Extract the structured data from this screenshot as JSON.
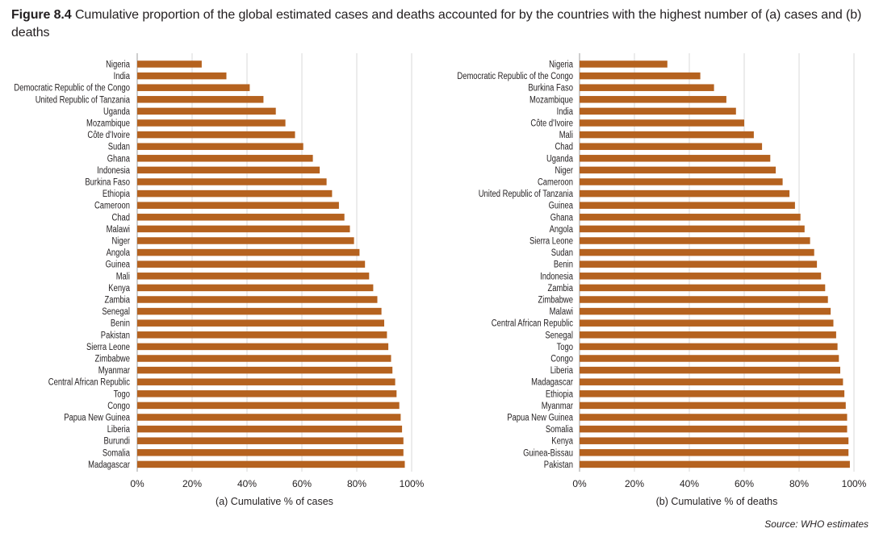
{
  "figure": {
    "label": "Figure 8.4",
    "title": "Cumulative proportion of the global estimated cases and deaths accounted for by the countries with the highest number of (a) cases and (b) deaths",
    "source_label": "Source:",
    "source_text": "WHO estimates"
  },
  "colors": {
    "bar": "#b5621f",
    "grid": "#d9d9d9",
    "axis": "#9d9d9d",
    "text": "#231f20"
  },
  "chart_data": [
    {
      "type": "bar",
      "orientation": "horizontal",
      "xlabel": "(a) Cumulative % of cases",
      "xlim": [
        0,
        100
      ],
      "xticks": [
        "0%",
        "20%",
        "40%",
        "60%",
        "80%",
        "100%"
      ],
      "grid": true,
      "categories": [
        "Nigeria",
        "India",
        "Democratic Republic of the Congo",
        "United Republic of Tanzania",
        "Uganda",
        "Mozambique",
        "Côte d'Ivoire",
        "Sudan",
        "Ghana",
        "Indonesia",
        "Burkina Faso",
        "Ethiopia",
        "Cameroon",
        "Chad",
        "Malawi",
        "Niger",
        "Angola",
        "Guinea",
        "Mali",
        "Kenya",
        "Zambia",
        "Senegal",
        "Benin",
        "Pakistan",
        "Sierra Leone",
        "Zimbabwe",
        "Myanmar",
        "Central African Republic",
        "Togo",
        "Congo",
        "Papua New Guinea",
        "Liberia",
        "Burundi",
        "Somalia",
        "Madagascar"
      ],
      "values": [
        23.5,
        32.5,
        41,
        46,
        50.5,
        54,
        57.5,
        60.5,
        64,
        66.5,
        69,
        71,
        73.5,
        75.5,
        77.5,
        79,
        81,
        83,
        84.5,
        86,
        87.5,
        89,
        90,
        91,
        91.5,
        92.5,
        93,
        94,
        94.5,
        95.5,
        96,
        96.5,
        97,
        97,
        97.5
      ]
    },
    {
      "type": "bar",
      "orientation": "horizontal",
      "xlabel": "(b) Cumulative % of deaths",
      "xlim": [
        0,
        100
      ],
      "xticks": [
        "0%",
        "20%",
        "40%",
        "60%",
        "80%",
        "100%"
      ],
      "grid": true,
      "categories": [
        "Nigeria",
        "Democratic Republic of the Congo",
        "Burkina Faso",
        "Mozambique",
        "India",
        "Côte d'Ivoire",
        "Mali",
        "Chad",
        "Uganda",
        "Niger",
        "Cameroon",
        "United Republic of Tanzania",
        "Guinea",
        "Ghana",
        "Angola",
        "Sierra Leone",
        "Sudan",
        "Benin",
        "Indonesia",
        "Zambia",
        "Zimbabwe",
        "Malawi",
        "Central African Republic",
        "Senegal",
        "Togo",
        "Congo",
        "Liberia",
        "Madagascar",
        "Ethiopia",
        "Myanmar",
        "Papua New Guinea",
        "Somalia",
        "Kenya",
        "Guinea-Bissau",
        "Pakistan"
      ],
      "values": [
        32,
        44,
        49,
        53.5,
        57,
        60,
        63.5,
        66.5,
        69.5,
        71.5,
        74,
        76.5,
        78.5,
        80.5,
        82,
        84,
        85.5,
        86.5,
        88,
        89.5,
        90.5,
        91.5,
        92.5,
        93.5,
        94,
        94.5,
        95,
        96,
        96.5,
        97,
        97.5,
        97.5,
        98,
        98,
        98.5
      ]
    }
  ]
}
